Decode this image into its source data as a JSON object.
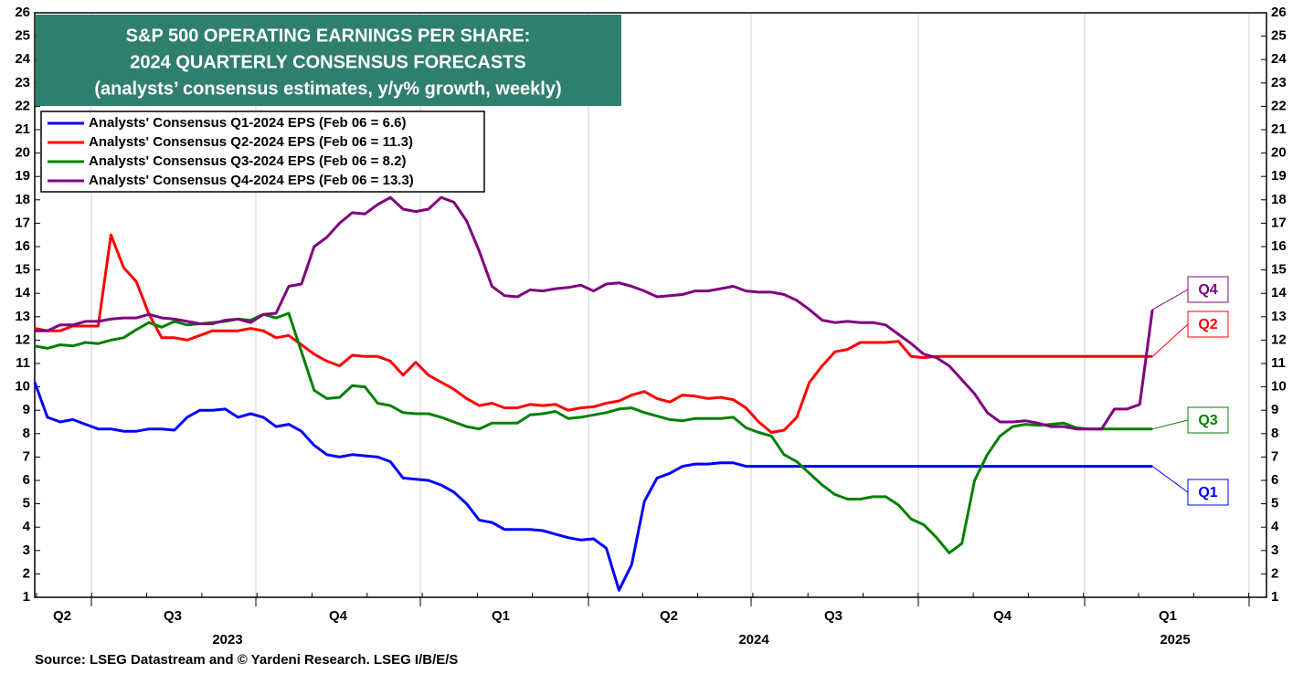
{
  "chart_data": {
    "type": "line",
    "title_lines": [
      "S&P 500 OPERATING EARNINGS PER SHARE:",
      "2024 QUARTERLY CONSENSUS FORECASTS",
      "(analysts’ consensus estimates, y/y% growth, weekly)"
    ],
    "source": "Source: LSEG Datastream and © Yardeni Research. LSEG I/B/E/S",
    "quarter_labels": [
      "Q2",
      "Q3",
      "Q4",
      "Q1",
      "Q2",
      "Q3",
      "Q4",
      "Q1"
    ],
    "year_labels": [
      "2023",
      "2024",
      "2025"
    ],
    "ylim": [
      1,
      26
    ],
    "yticks": [
      1,
      2,
      3,
      4,
      5,
      6,
      7,
      8,
      9,
      10,
      11,
      12,
      13,
      14,
      15,
      16,
      17,
      18,
      19,
      20,
      21,
      22,
      23,
      24,
      25,
      26
    ],
    "grid": "vertical",
    "legend": "upper left",
    "series": [
      {
        "name": "Analysts' Consensus Q1-2024 EPS (Feb 06 = 6.6)",
        "label": "Q1",
        "color": "#0000ff",
        "values": [
          10.2,
          8.7,
          8.5,
          8.6,
          8.4,
          8.2,
          8.2,
          8.1,
          8.1,
          8.2,
          8.2,
          8.15,
          8.7,
          9.0,
          9.0,
          9.05,
          8.7,
          8.85,
          8.7,
          8.3,
          8.4,
          8.1,
          7.5,
          7.1,
          7.0,
          7.1,
          7.05,
          7.0,
          6.8,
          6.1,
          6.05,
          6.0,
          5.8,
          5.5,
          5.0,
          4.3,
          4.2,
          3.9,
          3.9,
          3.9,
          3.85,
          3.7,
          3.55,
          3.45,
          3.5,
          3.1,
          1.3,
          2.4,
          5.1,
          6.1,
          6.3,
          6.6,
          6.7,
          6.7,
          6.75,
          6.75,
          6.6,
          6.6,
          6.6,
          6.6,
          6.6,
          6.6,
          6.6,
          6.6,
          6.6,
          6.6,
          6.6,
          6.6,
          6.6,
          6.6,
          6.6,
          6.6,
          6.6,
          6.6,
          6.6,
          6.6,
          6.6,
          6.6,
          6.6,
          6.6,
          6.6,
          6.6,
          6.6,
          6.6,
          6.6,
          6.6,
          6.6,
          6.6,
          6.6
        ]
      },
      {
        "name": "Analysts' Consensus Q2-2024 EPS (Feb 06 = 11.3)",
        "label": "Q2",
        "color": "#ff0000",
        "values": [
          12.5,
          12.4,
          12.4,
          12.6,
          12.6,
          12.6,
          16.5,
          15.1,
          14.5,
          13.1,
          12.1,
          12.1,
          12.0,
          12.2,
          12.4,
          12.4,
          12.4,
          12.5,
          12.4,
          12.1,
          12.2,
          11.8,
          11.4,
          11.1,
          10.9,
          11.35,
          11.3,
          11.3,
          11.1,
          10.5,
          11.05,
          10.5,
          10.2,
          9.9,
          9.5,
          9.2,
          9.3,
          9.1,
          9.1,
          9.25,
          9.2,
          9.25,
          9.0,
          9.1,
          9.15,
          9.3,
          9.4,
          9.65,
          9.8,
          9.5,
          9.35,
          9.65,
          9.6,
          9.5,
          9.55,
          9.45,
          9.1,
          8.5,
          8.05,
          8.15,
          8.7,
          10.2,
          10.9,
          11.5,
          11.6,
          11.9,
          11.9,
          11.9,
          11.95,
          11.3,
          11.25,
          11.3,
          11.3,
          11.3,
          11.3,
          11.3,
          11.3,
          11.3,
          11.3,
          11.3,
          11.3,
          11.3,
          11.3,
          11.3,
          11.3,
          11.3,
          11.3,
          11.3,
          11.3
        ]
      },
      {
        "name": "Analysts' Consensus Q3-2024 EPS (Feb 06 = 8.2)",
        "label": "Q3",
        "color": "#008000",
        "values": [
          11.75,
          11.65,
          11.8,
          11.75,
          11.9,
          11.85,
          12.0,
          12.1,
          12.45,
          12.75,
          12.55,
          12.8,
          12.65,
          12.7,
          12.75,
          12.8,
          12.9,
          12.85,
          13.1,
          12.95,
          13.15,
          11.5,
          9.85,
          9.5,
          9.55,
          10.05,
          10.0,
          9.3,
          9.2,
          8.9,
          8.85,
          8.85,
          8.7,
          8.5,
          8.3,
          8.2,
          8.45,
          8.45,
          8.45,
          8.8,
          8.85,
          8.95,
          8.65,
          8.7,
          8.8,
          8.9,
          9.05,
          9.1,
          8.9,
          8.75,
          8.6,
          8.55,
          8.65,
          8.65,
          8.65,
          8.7,
          8.25,
          8.05,
          7.9,
          7.1,
          6.8,
          6.3,
          5.8,
          5.4,
          5.2,
          5.2,
          5.3,
          5.3,
          4.95,
          4.35,
          4.1,
          3.55,
          2.9,
          3.3,
          6.0,
          7.1,
          7.9,
          8.3,
          8.4,
          8.35,
          8.4,
          8.45,
          8.25,
          8.2,
          8.2,
          8.2,
          8.2,
          8.2,
          8.2
        ]
      },
      {
        "name": "Analysts' Consensus Q4-2024 EPS (Feb 06 = 13.3)",
        "label": "Q4",
        "color": "#800080",
        "values": [
          12.4,
          12.4,
          12.65,
          12.65,
          12.8,
          12.8,
          12.9,
          12.95,
          12.95,
          13.1,
          12.95,
          12.9,
          12.8,
          12.7,
          12.7,
          12.85,
          12.9,
          12.75,
          13.1,
          13.15,
          14.3,
          14.4,
          16.0,
          16.4,
          17.0,
          17.45,
          17.4,
          17.8,
          18.1,
          17.6,
          17.5,
          17.6,
          18.1,
          17.9,
          17.1,
          15.8,
          14.3,
          13.9,
          13.85,
          14.15,
          14.1,
          14.2,
          14.25,
          14.35,
          14.1,
          14.4,
          14.45,
          14.3,
          14.1,
          13.85,
          13.9,
          13.95,
          14.1,
          14.1,
          14.2,
          14.3,
          14.1,
          14.05,
          14.05,
          13.95,
          13.7,
          13.3,
          12.85,
          12.75,
          12.8,
          12.75,
          12.75,
          12.65,
          12.25,
          11.85,
          11.4,
          11.25,
          10.9,
          10.3,
          9.7,
          8.9,
          8.5,
          8.5,
          8.55,
          8.45,
          8.3,
          8.3,
          8.2,
          8.2,
          8.2,
          9.05,
          9.05,
          9.25,
          13.3
        ]
      }
    ]
  }
}
